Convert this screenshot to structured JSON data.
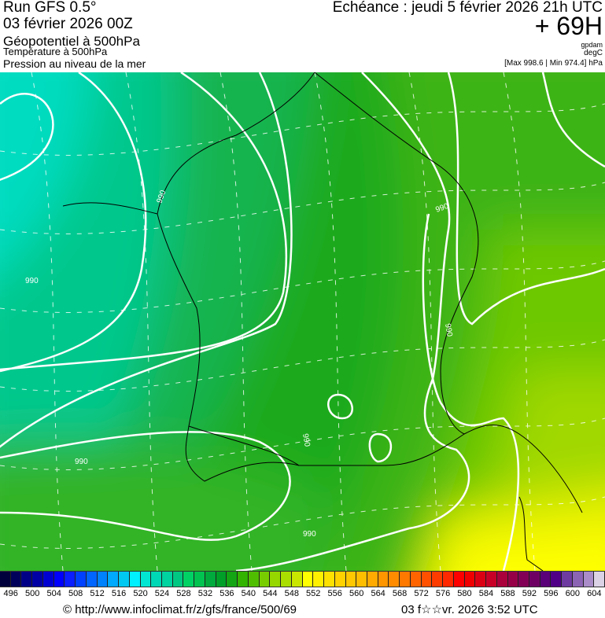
{
  "header": {
    "run": "Run GFS 0.5°",
    "run_date": "03 février 2026 00Z",
    "layer1": "Géopotentiel à 500hPa",
    "layer2": "Température à 500hPa",
    "layer3": "Pression au niveau de la mer",
    "echeance": "Echéance : jeudi 5 février 2026 21h UTC",
    "offset": "+ 69H",
    "unit1": "gpdam",
    "unit2": "degC",
    "pressure_range": "[Max 998.6 | Min 974.4] hPa"
  },
  "map": {
    "contour_labels": [
      "990",
      "990",
      "990",
      "990",
      "990",
      "990",
      "990"
    ],
    "contour_color": "#ffffff"
  },
  "colorbar": {
    "labels": [
      "496",
      "500",
      "504",
      "508",
      "512",
      "516",
      "520",
      "524",
      "528",
      "532",
      "536",
      "540",
      "544",
      "548",
      "552",
      "556",
      "560",
      "564",
      "568",
      "572",
      "576",
      "580",
      "584",
      "588",
      "592",
      "596",
      "600",
      "604"
    ],
    "colors": [
      "#00003c",
      "#00005a",
      "#000087",
      "#0000a5",
      "#0000d2",
      "#0000ff",
      "#0a1eff",
      "#0041ff",
      "#0064ff",
      "#0082ff",
      "#00aaff",
      "#00c8f0",
      "#00f0ff",
      "#00e6d2",
      "#00d7b4",
      "#00d2a0",
      "#00c882",
      "#00d264",
      "#00c350",
      "#00aa3c",
      "#00a028",
      "#14a514",
      "#32b400",
      "#50be00",
      "#78cd00",
      "#96d700",
      "#aade00",
      "#c8e600",
      "#ffff00",
      "#fff000",
      "#ffe100",
      "#ffd200",
      "#ffc800",
      "#ffbe00",
      "#ffaa00",
      "#ff9600",
      "#ff8c00",
      "#ff7800",
      "#ff6400",
      "#ff5000",
      "#ff3c00",
      "#ff2800",
      "#ff0000",
      "#f00000",
      "#dc0014",
      "#c80028",
      "#aa003c",
      "#960046",
      "#820055",
      "#6e0064",
      "#5a0078",
      "#500087",
      "#6e3ca0",
      "#8c64b4",
      "#aa8cc8",
      "#dcd2e6"
    ]
  },
  "footer": {
    "url": "© http://www.infoclimat.fr/z/gfs/france/500/69",
    "timestamp": "03 f☆☆vr. 2026  3:52 UTC"
  }
}
